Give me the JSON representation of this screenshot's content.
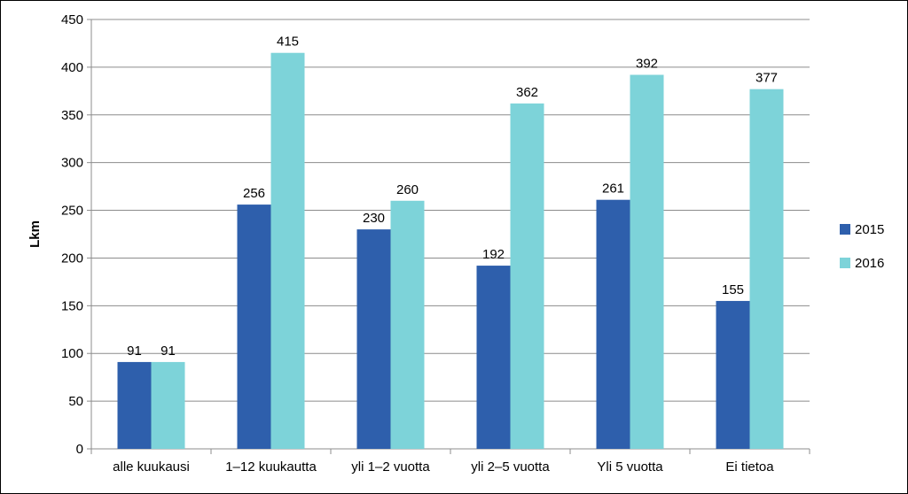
{
  "chart_data": {
    "type": "bar",
    "categories": [
      "alle kuukausi",
      "1–12 kuukautta",
      "yli 1–2 vuotta",
      "yli 2–5 vuotta",
      "Yli 5 vuotta",
      "Ei tietoa"
    ],
    "series": [
      {
        "name": "2015",
        "color": "#2E5FAC",
        "values": [
          91,
          256,
          230,
          192,
          261,
          155
        ]
      },
      {
        "name": "2016",
        "color": "#7DD3D9",
        "values": [
          91,
          415,
          260,
          362,
          392,
          377
        ]
      }
    ],
    "title": "",
    "xlabel": "",
    "ylabel": "Lkm",
    "ylim": [
      0,
      450
    ],
    "ytick_step": 50,
    "grid": true,
    "legend_position": "right",
    "data_labels": true
  }
}
